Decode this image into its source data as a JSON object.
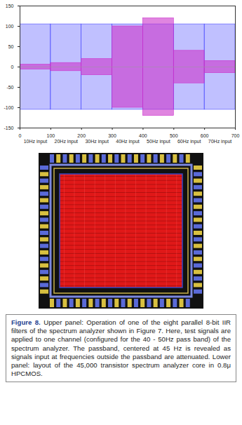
{
  "chart_data": {
    "type": "band",
    "xlim": [
      0,
      700
    ],
    "xticks": [
      0,
      100,
      200,
      300,
      400,
      500,
      600,
      700
    ],
    "ylim": [
      -150,
      150
    ],
    "yticks": [
      150,
      100,
      50,
      0,
      -50,
      -100,
      -150
    ],
    "grid": false,
    "bins": [
      0,
      100,
      200,
      300,
      400,
      500,
      600,
      700
    ],
    "categories": [
      "10Hz input",
      "20Hz input",
      "30Hz input",
      "40Hz input",
      "50Hz input",
      "60Hz input",
      "70Hz input"
    ],
    "series": [
      {
        "color": "#4a4aff",
        "values": [
          105,
          105,
          105,
          105,
          105,
          105,
          105
        ]
      },
      {
        "color": "#cc33cc",
        "values": [
          6,
          10,
          20,
          100,
          120,
          40,
          15
        ]
      }
    ]
  },
  "caption": {
    "label": "Figure 8.",
    "text": "Upper panel: Operation of one of the eight parallel 8-bit IIR filters of the spectrum analyzer shown in Figure 7. Here, test signals are applied to one channel (configured for the 40 - 50Hz pass band) of the spectrum analyzer. The passband, centered at 45 Hz is revealed as signals input at frequencies outside the passband are attenuated. Lower panel: layout of the 45,000 transistor spectrum analyzer core in 0.8μ HPCMOS."
  }
}
